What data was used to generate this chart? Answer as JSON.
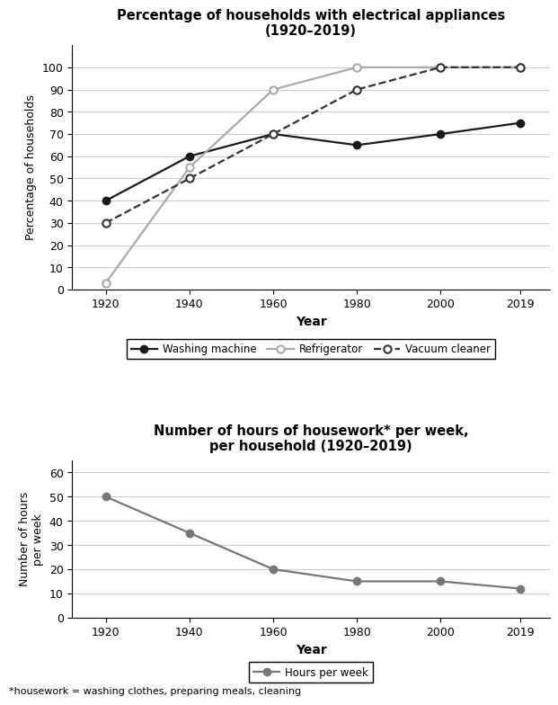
{
  "years": [
    1920,
    1940,
    1960,
    1980,
    2000,
    2019
  ],
  "washing_machine": [
    40,
    60,
    70,
    65,
    70,
    75
  ],
  "refrigerator": [
    3,
    55,
    90,
    100,
    100,
    100
  ],
  "vacuum_cleaner": [
    30,
    50,
    70,
    90,
    100,
    100
  ],
  "hours_per_week": [
    50,
    35,
    20,
    15,
    15,
    12
  ],
  "chart1_title": "Percentage of households with electrical appliances\n(1920–2019)",
  "chart1_ylabel": "Percentage of households",
  "chart1_xlabel": "Year",
  "chart1_ylim": [
    0,
    110
  ],
  "chart1_yticks": [
    0,
    10,
    20,
    30,
    40,
    50,
    60,
    70,
    80,
    90,
    100
  ],
  "chart2_title": "Number of hours of housework* per week,\nper household (1920–2019)",
  "chart2_ylabel": "Number of hours\nper week",
  "chart2_xlabel": "Year",
  "chart2_ylim": [
    0,
    65
  ],
  "chart2_yticks": [
    0,
    10,
    20,
    30,
    40,
    50,
    60
  ],
  "footnote": "*housework = washing clothes, preparing meals, cleaning",
  "color_washing": "#1a1a1a",
  "color_refrigerator": "#aaaaaa",
  "color_vacuum": "#333333",
  "color_hours": "#777777",
  "legend1_labels": [
    "Washing machine",
    "Refrigerator",
    "Vacuum cleaner"
  ],
  "legend2_label": "Hours per week"
}
